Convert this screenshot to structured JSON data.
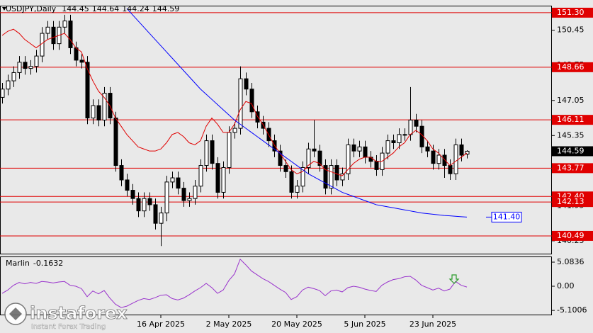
{
  "chart_data": [
    {
      "type": "candlestick",
      "title": "USDJPY,Daily",
      "categories": [
        null,
        null,
        null,
        null,
        null,
        null,
        null,
        null,
        null,
        null,
        null,
        null,
        null,
        null,
        null,
        null,
        null,
        null,
        null,
        null,
        null,
        null,
        null,
        null,
        null,
        null,
        null,
        null,
        "16 Apr 2025",
        null,
        null,
        null,
        null,
        null,
        null,
        null,
        null,
        null,
        null,
        null,
        "2 May 2025",
        null,
        null,
        null,
        null,
        null,
        null,
        null,
        null,
        null,
        null,
        null,
        "20 May 2025",
        null,
        null,
        null,
        null,
        null,
        null,
        null,
        null,
        null,
        null,
        null,
        "5 Jun 2025",
        null,
        null,
        null,
        null,
        null,
        null,
        null,
        null,
        null,
        null,
        null,
        "23 Jun 2025",
        null,
        null,
        null,
        null,
        null,
        null
      ],
      "open": [
        147.2,
        147.6,
        148.0,
        148.4,
        148.9,
        148.6,
        148.7,
        149.2,
        150.3,
        150.6,
        149.8,
        150.6,
        150.9,
        149.6,
        149.0,
        148.9,
        146.2,
        146.8,
        146.1,
        147.4,
        146.2,
        143.9,
        143.2,
        142.7,
        142.3,
        141.7,
        142.3,
        142.0,
        141.1,
        141.6,
        143.1,
        143.3,
        142.8,
        142.2,
        142.3,
        142.9,
        143.9,
        145.1,
        144.0,
        142.6,
        143.8,
        145.5,
        145.7,
        148.1,
        147.6,
        146.5,
        146.0,
        145.7,
        145.1,
        144.6,
        143.9,
        143.6,
        142.6,
        142.9,
        143.8,
        144.7,
        144.6,
        143.9,
        142.8,
        143.9,
        143.2,
        143.5,
        144.9,
        144.6,
        144.8,
        144.3,
        144.1,
        143.7,
        144.5,
        145.1,
        145.0,
        145.4,
        145.4,
        146.1,
        145.8,
        144.8,
        144.6,
        144.0,
        144.4,
        143.9,
        143.5,
        144.9,
        144.45
      ],
      "high": [
        147.9,
        148.3,
        148.7,
        149.2,
        149.2,
        149.0,
        149.5,
        150.6,
        150.9,
        150.9,
        150.9,
        151.2,
        151.2,
        149.9,
        149.3,
        149.2,
        147.1,
        147.1,
        147.7,
        147.7,
        146.5,
        144.2,
        143.5,
        143.0,
        142.6,
        142.6,
        142.6,
        142.3,
        141.9,
        143.4,
        143.6,
        143.6,
        143.1,
        142.6,
        143.2,
        144.2,
        145.4,
        145.4,
        144.3,
        144.1,
        145.8,
        146.0,
        148.7,
        148.4,
        147.9,
        146.8,
        146.3,
        146.0,
        145.4,
        144.9,
        144.2,
        143.9,
        143.2,
        144.1,
        145.0,
        146.1,
        144.9,
        144.2,
        144.2,
        144.2,
        143.8,
        145.2,
        145.2,
        145.1,
        145.1,
        144.6,
        144.4,
        144.8,
        145.4,
        145.4,
        145.7,
        145.7,
        147.7,
        146.4,
        146.1,
        145.1,
        144.9,
        144.7,
        144.7,
        144.2,
        145.2,
        145.2,
        144.64
      ],
      "low": [
        146.9,
        147.3,
        147.7,
        148.1,
        148.3,
        148.3,
        148.4,
        148.9,
        150.0,
        149.5,
        149.5,
        150.3,
        149.3,
        148.7,
        148.6,
        145.9,
        145.9,
        145.8,
        145.8,
        145.9,
        143.6,
        142.9,
        142.4,
        142.0,
        141.4,
        141.4,
        141.7,
        140.8,
        140.0,
        141.2,
        142.8,
        142.5,
        141.9,
        141.9,
        142.0,
        142.6,
        143.6,
        143.7,
        142.3,
        142.3,
        143.5,
        145.2,
        145.4,
        147.3,
        146.2,
        145.7,
        145.4,
        144.8,
        144.3,
        143.6,
        143.3,
        142.3,
        142.3,
        142.6,
        143.5,
        144.3,
        143.6,
        142.5,
        142.5,
        142.9,
        142.9,
        143.2,
        144.3,
        144.3,
        144.0,
        143.8,
        143.4,
        143.4,
        144.2,
        144.7,
        144.7,
        145.1,
        145.1,
        145.5,
        144.5,
        144.3,
        143.7,
        143.7,
        143.3,
        143.2,
        143.2,
        144.1,
        144.24
      ],
      "close": [
        147.6,
        148.0,
        148.4,
        148.9,
        148.6,
        148.7,
        149.2,
        150.3,
        150.6,
        149.8,
        150.6,
        150.9,
        149.6,
        149.0,
        148.9,
        146.2,
        146.8,
        146.1,
        147.4,
        146.2,
        143.9,
        143.2,
        142.7,
        142.3,
        141.7,
        142.3,
        142.0,
        141.1,
        141.6,
        143.1,
        143.3,
        142.8,
        142.2,
        142.3,
        142.9,
        143.9,
        145.1,
        144.0,
        142.6,
        143.8,
        145.5,
        145.7,
        148.1,
        147.6,
        146.5,
        146.0,
        145.7,
        145.1,
        144.6,
        143.9,
        143.6,
        142.6,
        142.9,
        143.8,
        144.7,
        144.6,
        143.9,
        142.8,
        143.9,
        143.2,
        143.5,
        144.9,
        144.6,
        144.8,
        144.3,
        144.1,
        143.7,
        144.5,
        145.1,
        145.0,
        145.4,
        145.4,
        146.1,
        145.8,
        144.8,
        144.6,
        144.0,
        144.4,
        143.9,
        143.5,
        144.9,
        144.4,
        144.59
      ],
      "up_color": "#ffffff",
      "down_color": "#000000",
      "wick_color": "#000000",
      "lines": [
        {
          "color": "#e00000",
          "values": [
            150.2,
            150.4,
            150.5,
            150.3,
            150.0,
            149.8,
            149.6,
            149.8,
            150.0,
            150.1,
            150.2,
            150.3,
            150.0,
            149.6,
            149.4,
            148.6,
            148.0,
            147.5,
            147.2,
            146.8,
            146.2,
            145.8,
            145.4,
            145.1,
            144.8,
            144.7,
            144.6,
            144.6,
            144.7,
            145.0,
            145.4,
            145.5,
            145.3,
            145.0,
            144.9,
            145.1,
            145.8,
            146.2,
            145.9,
            145.5,
            145.5,
            145.9,
            146.6,
            147.0,
            146.9,
            146.3,
            145.9,
            145.4,
            144.9,
            144.5,
            144.1,
            143.7,
            143.5,
            143.6,
            143.9,
            144.1,
            144.0,
            143.7,
            143.6,
            143.5,
            143.4,
            143.7,
            144.0,
            144.2,
            144.3,
            144.3,
            144.1,
            144.1,
            144.3,
            144.5,
            144.8,
            145.0,
            145.4,
            145.6,
            145.4,
            145.1,
            144.7,
            144.5,
            144.2,
            143.9,
            144.1,
            144.3,
            144.5
          ]
        },
        {
          "color": "#0000ff",
          "values": [
            null,
            null,
            null,
            null,
            null,
            null,
            null,
            null,
            null,
            null,
            null,
            null,
            null,
            null,
            null,
            null,
            null,
            null,
            null,
            null,
            null,
            null,
            151.5,
            151.2,
            150.9,
            150.6,
            150.3,
            150.0,
            149.7,
            149.4,
            149.1,
            148.8,
            148.5,
            148.2,
            147.9,
            147.6,
            147.35,
            147.1,
            146.85,
            146.6,
            146.35,
            146.1,
            145.9,
            145.7,
            145.5,
            145.3,
            145.1,
            144.9,
            144.7,
            144.5,
            144.3,
            144.1,
            143.9,
            143.7,
            143.5,
            143.35,
            143.2,
            143.05,
            142.9,
            142.75,
            142.6,
            142.5,
            142.4,
            142.3,
            142.2,
            142.1,
            142.0,
            141.95,
            141.9,
            141.85,
            141.8,
            141.75,
            141.7,
            141.65,
            141.6,
            141.57,
            141.54,
            141.51,
            141.48,
            141.46,
            141.44,
            141.42,
            141.4
          ],
          "end_label": {
            "value": 141.4,
            "label": "141.40"
          }
        }
      ],
      "levels": [
        {
          "value": 151.3,
          "label": "151.30"
        },
        {
          "value": 148.66,
          "label": "148.66"
        },
        {
          "value": 146.11,
          "label": "146.11"
        },
        {
          "value": 143.77,
          "label": "143.77"
        },
        {
          "value": 142.4,
          "label": "142.40"
        },
        {
          "value": 142.13,
          "label": "142.13"
        },
        {
          "value": 140.49,
          "label": "140.49"
        }
      ],
      "level_color": "#e00000",
      "ylim": [
        139.63,
        151.64
      ],
      "yticks": [
        150.45,
        148.75,
        147.05,
        145.35,
        143.65,
        141.95,
        140.25
      ],
      "watermark": [
        "instaforex",
        "Instant Forex Trading"
      ]
    },
    {
      "type": "line",
      "title": "Marlin",
      "color": "#9933cc",
      "values": [
        -1.5,
        -0.8,
        0.2,
        0.8,
        0.5,
        0.8,
        0.6,
        1.0,
        0.9,
        0.7,
        0.9,
        1.0,
        0.2,
        0.0,
        -0.5,
        -2.2,
        -1.0,
        -1.6,
        -0.9,
        -2.5,
        -3.8,
        -4.5,
        -4.2,
        -3.6,
        -3.0,
        -2.6,
        -2.8,
        -2.4,
        -1.9,
        -1.8,
        -2.6,
        -2.9,
        -2.5,
        -1.8,
        -1.0,
        -0.3,
        0.6,
        -0.3,
        -1.5,
        -0.8,
        1.2,
        2.6,
        5.7,
        4.5,
        3.2,
        2.4,
        1.6,
        1.0,
        0.2,
        -0.6,
        -1.3,
        -2.8,
        -2.2,
        -0.8,
        -0.2,
        -0.5,
        -0.9,
        -2.0,
        -1.0,
        -0.8,
        -1.2,
        -0.3,
        0.0,
        -0.2,
        -0.6,
        -0.9,
        -1.1,
        0.2,
        0.9,
        1.4,
        1.6,
        2.0,
        2.1,
        1.3,
        0.2,
        -0.3,
        -0.8,
        -0.4,
        -1.0,
        -0.6,
        1.0,
        0.2,
        -0.1632
      ],
      "ylim": [
        -5.83,
        6.13
      ],
      "yticks": [
        5.0836,
        {
          "value": 0,
          "label": "0.00"
        },
        -5.1006
      ]
    }
  ]
}
